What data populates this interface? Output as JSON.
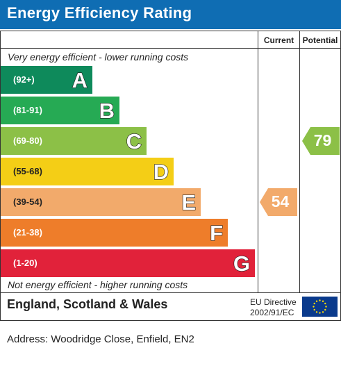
{
  "title": "Energy Efficiency Rating",
  "columns": {
    "current": "Current",
    "potential": "Potential"
  },
  "top_note": "Very energy efficient - lower running costs",
  "bottom_note": "Not energy efficient - higher running costs",
  "chart_data": {
    "type": "bar",
    "categories": [
      "A",
      "B",
      "C",
      "D",
      "E",
      "F",
      "G"
    ],
    "bands": [
      {
        "letter": "A",
        "range": "(92+)",
        "color": "#0e8a5b"
      },
      {
        "letter": "B",
        "range": "(81-91)",
        "color": "#26aa54"
      },
      {
        "letter": "C",
        "range": "(69-80)",
        "color": "#8cc047"
      },
      {
        "letter": "D",
        "range": "(55-68)",
        "color": "#f4ce16"
      },
      {
        "letter": "E",
        "range": "(39-54)",
        "color": "#f2aa6b"
      },
      {
        "letter": "F",
        "range": "(21-38)",
        "color": "#ee7d2a"
      },
      {
        "letter": "G",
        "range": "(1-20)",
        "color": "#e1223a"
      }
    ],
    "current": {
      "value": 54,
      "band": "E",
      "color": "#f2aa6b"
    },
    "potential": {
      "value": 79,
      "band": "C",
      "color": "#8cc047"
    }
  },
  "footer": {
    "region": "England, Scotland & Wales",
    "directive_line1": "EU Directive",
    "directive_line2": "2002/91/EC"
  },
  "address": "Address: Woodridge Close, Enfield, EN2"
}
